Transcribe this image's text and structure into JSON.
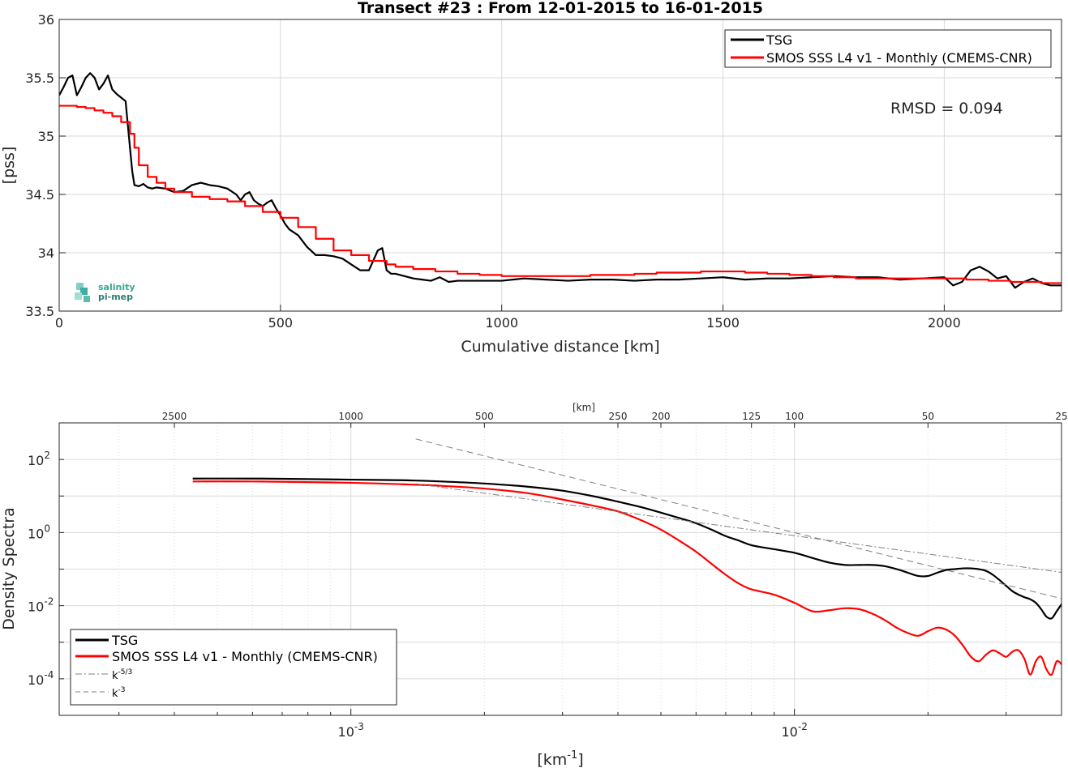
{
  "chart_data": [
    {
      "type": "line",
      "title": "Transect #23 : From 12-01-2015 to 16-01-2015",
      "xlabel": "Cumulative distance [km]",
      "ylabel": "[pss]",
      "xlim": [
        0,
        2265
      ],
      "ylim": [
        33.5,
        36
      ],
      "xticks": [
        "0",
        "500",
        "1000",
        "1500",
        "2000"
      ],
      "yticks": [
        "33.5",
        "34",
        "34.5",
        "35",
        "35.5",
        "36"
      ],
      "grid": true,
      "legend_position": "top-right",
      "annotation": "RMSD = 0.094",
      "logo": "salinity pi-mep",
      "series": [
        {
          "name": "TSG",
          "color": "#000000",
          "x": [
            0,
            10,
            20,
            30,
            40,
            50,
            60,
            70,
            80,
            90,
            100,
            110,
            120,
            130,
            140,
            150,
            155,
            160,
            165,
            170,
            180,
            190,
            200,
            210,
            220,
            240,
            260,
            280,
            300,
            320,
            340,
            360,
            380,
            400,
            410,
            420,
            430,
            440,
            450,
            460,
            470,
            480,
            490,
            500,
            510,
            520,
            540,
            560,
            580,
            600,
            620,
            640,
            660,
            680,
            700,
            720,
            730,
            740,
            750,
            760,
            780,
            800,
            820,
            840,
            860,
            880,
            900,
            950,
            1000,
            1050,
            1100,
            1150,
            1200,
            1250,
            1300,
            1350,
            1400,
            1450,
            1500,
            1550,
            1600,
            1650,
            1700,
            1750,
            1800,
            1850,
            1900,
            1950,
            2000,
            2020,
            2040,
            2060,
            2080,
            2100,
            2120,
            2140,
            2160,
            2180,
            2200,
            2220,
            2240,
            2265
          ],
          "y": [
            35.35,
            35.42,
            35.5,
            35.52,
            35.35,
            35.42,
            35.5,
            35.54,
            35.5,
            35.4,
            35.45,
            35.52,
            35.4,
            35.36,
            35.33,
            35.3,
            35.1,
            34.9,
            34.7,
            34.58,
            34.57,
            34.59,
            34.56,
            34.55,
            34.56,
            34.55,
            34.52,
            34.53,
            34.58,
            34.6,
            34.58,
            34.57,
            34.55,
            34.5,
            34.45,
            34.5,
            34.52,
            34.45,
            34.42,
            34.4,
            34.43,
            34.45,
            34.38,
            34.32,
            34.25,
            34.2,
            34.15,
            34.05,
            33.98,
            33.98,
            33.97,
            33.95,
            33.9,
            33.85,
            33.85,
            34.02,
            34.04,
            33.85,
            33.82,
            33.82,
            33.8,
            33.78,
            33.77,
            33.76,
            33.79,
            33.75,
            33.76,
            33.76,
            33.76,
            33.78,
            33.77,
            33.76,
            33.77,
            33.77,
            33.76,
            33.77,
            33.77,
            33.78,
            33.79,
            33.77,
            33.78,
            33.78,
            33.79,
            33.8,
            33.79,
            33.79,
            33.77,
            33.78,
            33.79,
            33.72,
            33.75,
            33.85,
            33.88,
            33.84,
            33.78,
            33.8,
            33.7,
            33.75,
            33.78,
            33.74,
            33.72,
            33.72
          ]
        },
        {
          "name": "SMOS SSS L4 v1 - Monthly (CMEMS-CNR)",
          "color": "#ff0000",
          "x": [
            0,
            20,
            40,
            60,
            80,
            100,
            120,
            140,
            160,
            170,
            180,
            200,
            220,
            240,
            260,
            300,
            340,
            380,
            420,
            460,
            500,
            540,
            580,
            620,
            660,
            700,
            740,
            760,
            800,
            850,
            900,
            950,
            1000,
            1050,
            1100,
            1150,
            1200,
            1250,
            1300,
            1350,
            1400,
            1450,
            1500,
            1550,
            1600,
            1650,
            1700,
            1750,
            1800,
            1850,
            1900,
            1950,
            2000,
            2050,
            2100,
            2150,
            2200,
            2220,
            2240,
            2265
          ],
          "y": [
            35.26,
            35.26,
            35.25,
            35.24,
            35.22,
            35.2,
            35.17,
            35.12,
            35.02,
            34.9,
            34.75,
            34.65,
            34.6,
            34.55,
            34.52,
            34.48,
            34.46,
            34.44,
            34.4,
            34.35,
            34.3,
            34.22,
            34.12,
            34.02,
            33.98,
            33.93,
            33.9,
            33.88,
            33.86,
            33.84,
            33.82,
            33.81,
            33.8,
            33.8,
            33.8,
            33.8,
            33.81,
            33.81,
            33.82,
            33.83,
            33.83,
            33.84,
            33.84,
            33.83,
            33.82,
            33.81,
            33.8,
            33.79,
            33.78,
            33.78,
            33.78,
            33.78,
            33.78,
            33.77,
            33.76,
            33.75,
            33.75,
            33.74,
            33.74,
            33.74
          ]
        }
      ]
    },
    {
      "type": "line",
      "title": "",
      "xlabel": "[km",
      "xlabel_sup": "-1",
      "xlabel_end": "]",
      "ylabel": "Density Spectra",
      "x_scale": "log",
      "y_scale": "log",
      "xlim": [
        0.00022,
        0.04
      ],
      "ylim": [
        1e-05,
        1000
      ],
      "xticks": [
        {
          "v": 0.001,
          "base": "10",
          "exp": "-3"
        },
        {
          "v": 0.01,
          "base": "10",
          "exp": "-2"
        }
      ],
      "yticks": [
        {
          "v": 100,
          "base": "10",
          "exp": "2"
        },
        {
          "v": 1,
          "base": "10",
          "exp": "0"
        },
        {
          "v": 0.01,
          "base": "10",
          "exp": "-2"
        },
        {
          "v": 0.0001,
          "base": "10",
          "exp": "-4"
        }
      ],
      "top_axis_label": "[km]",
      "top_ticks": [
        "2500",
        "1000",
        "500",
        "250",
        "200",
        "125",
        "100",
        "50",
        "25"
      ],
      "grid": true,
      "legend_position": "bottom-left",
      "series": [
        {
          "name": "TSG",
          "color": "#000000",
          "x": [
            0.00044,
            0.0006,
            0.0008,
            0.001,
            0.0013,
            0.0016,
            0.002,
            0.0025,
            0.003,
            0.0035,
            0.004,
            0.0045,
            0.005,
            0.0055,
            0.006,
            0.0065,
            0.007,
            0.0075,
            0.008,
            0.009,
            0.01,
            0.011,
            0.012,
            0.013,
            0.014,
            0.015,
            0.016,
            0.017,
            0.018,
            0.019,
            0.02,
            0.021,
            0.022,
            0.023,
            0.024,
            0.025,
            0.026,
            0.027,
            0.028,
            0.029,
            0.03,
            0.031,
            0.032,
            0.033,
            0.034,
            0.035,
            0.036,
            0.037,
            0.038,
            0.039,
            0.04
          ],
          "y": [
            30,
            30,
            29,
            28,
            27,
            25,
            22,
            18,
            14,
            10,
            7,
            5,
            3.5,
            2.5,
            1.8,
            1.2,
            0.8,
            0.6,
            0.45,
            0.35,
            0.28,
            0.2,
            0.15,
            0.13,
            0.13,
            0.13,
            0.12,
            0.1,
            0.08,
            0.065,
            0.065,
            0.08,
            0.095,
            0.1,
            0.105,
            0.105,
            0.1,
            0.09,
            0.07,
            0.05,
            0.035,
            0.025,
            0.02,
            0.017,
            0.015,
            0.012,
            0.008,
            0.005,
            0.0045,
            0.007,
            0.011
          ]
        },
        {
          "name": "SMOS SSS L4 v1 - Monthly (CMEMS-CNR)",
          "color": "#ff0000",
          "x": [
            0.00044,
            0.0006,
            0.0008,
            0.001,
            0.0013,
            0.0016,
            0.002,
            0.0025,
            0.003,
            0.0035,
            0.004,
            0.0045,
            0.005,
            0.0055,
            0.006,
            0.0065,
            0.007,
            0.0075,
            0.008,
            0.009,
            0.01,
            0.011,
            0.012,
            0.013,
            0.014,
            0.015,
            0.016,
            0.017,
            0.018,
            0.019,
            0.02,
            0.021,
            0.022,
            0.023,
            0.024,
            0.025,
            0.026,
            0.027,
            0.028,
            0.029,
            0.03,
            0.031,
            0.032,
            0.033,
            0.034,
            0.035,
            0.036,
            0.037,
            0.038,
            0.039,
            0.04
          ],
          "y": [
            25,
            25,
            24,
            23,
            21,
            19,
            16,
            12,
            8,
            5.5,
            3.8,
            2.2,
            1.2,
            0.6,
            0.3,
            0.14,
            0.07,
            0.04,
            0.028,
            0.02,
            0.012,
            0.007,
            0.0075,
            0.0085,
            0.008,
            0.006,
            0.004,
            0.0025,
            0.0018,
            0.0015,
            0.002,
            0.0025,
            0.0022,
            0.0015,
            0.0008,
            0.0004,
            0.0003,
            0.00045,
            0.0006,
            0.0005,
            0.0004,
            0.00055,
            0.0006,
            0.00035,
            0.00013,
            0.0003,
            0.0004,
            0.00018,
            0.00013,
            0.0003,
            0.00025
          ]
        },
        {
          "name": "k-5/3",
          "label_base": "k",
          "label_exp": "-5/3",
          "color": "#808080",
          "dash": "dashdot",
          "x": [
            0.0014,
            0.04
          ],
          "y": [
            21.6,
            0.0816
          ]
        },
        {
          "name": "k-3",
          "label_base": "k",
          "label_exp": "-3",
          "color": "#808080",
          "dash": "dash",
          "x": [
            0.0014,
            0.04
          ],
          "y": [
            364,
            0.0156
          ]
        }
      ]
    }
  ]
}
